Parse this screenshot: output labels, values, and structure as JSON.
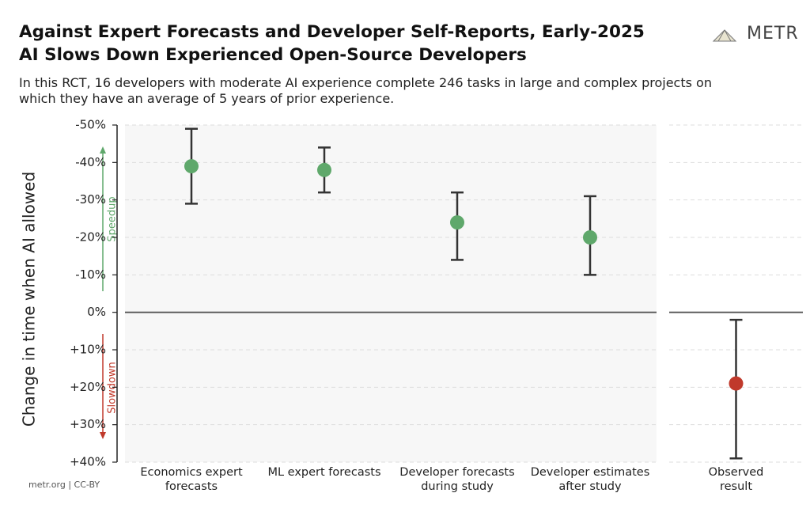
{
  "title": [
    "Against Expert Forecasts and Developer Self-Reports, Early-2025",
    "AI Slows Down Experienced Open-Source Developers"
  ],
  "subtitle": "In this RCT, 16 developers with moderate AI experience complete 246 tasks in large and complex projects on which they have an average of 5 years of prior experience.",
  "logo": "METR",
  "footer": "metr.org  |  CC-BY",
  "chart_data": {
    "type": "errorbar",
    "y_label": "Change in time when AI allowed",
    "annotations": {
      "up": "Speedup",
      "down": "Slowdown"
    },
    "categories": [
      "Economics expert forecasts",
      "ML expert forecasts",
      "Developer forecasts during study",
      "Developer estimates after study",
      "Observed result"
    ],
    "values": [
      -39,
      -38,
      -24,
      -20,
      19
    ],
    "lower": [
      -49,
      -44,
      -32,
      -31,
      2
    ],
    "upper": [
      -29,
      -32,
      -14,
      -10,
      39
    ],
    "colors": [
      "#5fa86b",
      "#5fa86b",
      "#5fa86b",
      "#5fa86b",
      "#c0392b"
    ],
    "ylim": [
      -50,
      40
    ],
    "invert_y": true,
    "grid": true,
    "yticks": [
      {
        "value": -50,
        "label": "-50%"
      },
      {
        "value": -40,
        "label": "-40%"
      },
      {
        "value": -30,
        "label": "-30%"
      },
      {
        "value": -20,
        "label": "-20%"
      },
      {
        "value": -10,
        "label": "-10%"
      },
      {
        "value": 0,
        "label": "0%"
      },
      {
        "value": 10,
        "label": "+10%"
      },
      {
        "value": 20,
        "label": "+20%"
      },
      {
        "value": 30,
        "label": "+30%"
      },
      {
        "value": 40,
        "label": "+40%"
      }
    ]
  }
}
